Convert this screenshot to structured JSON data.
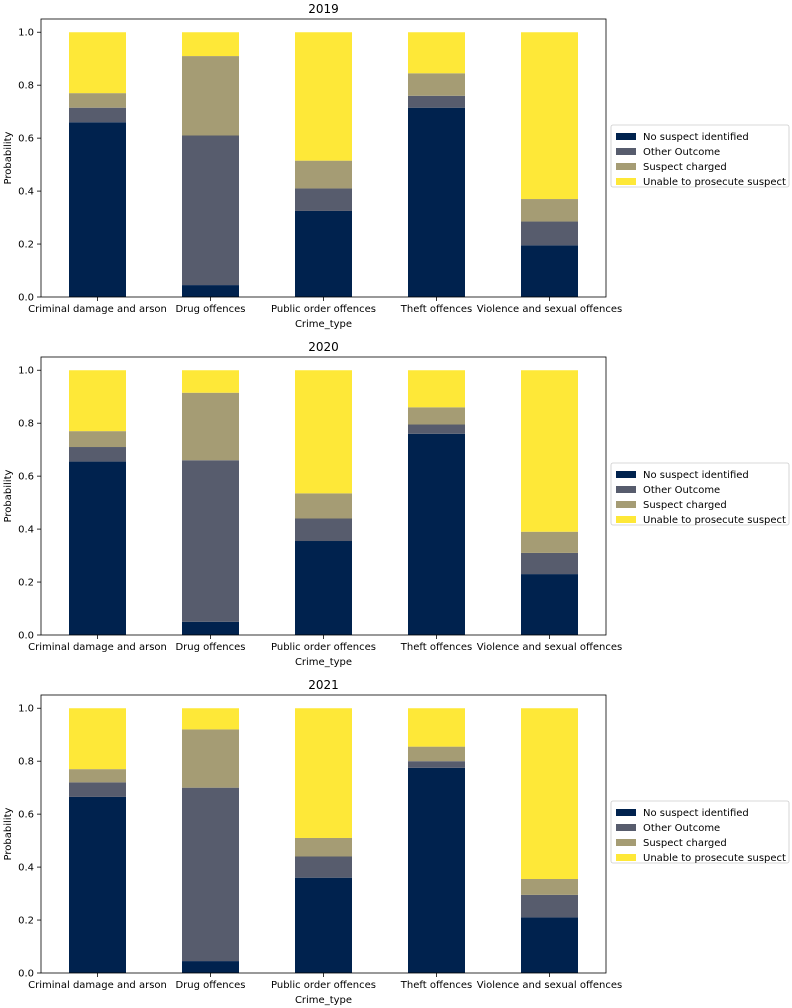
{
  "chart_data": [
    {
      "type": "bar",
      "stacked": true,
      "title": "2019",
      "xlabel": "Crime_type",
      "ylabel": "Probability",
      "ylim": [
        0,
        1.05
      ],
      "yticks": [
        "0.0",
        "0.2",
        "0.4",
        "0.6",
        "0.8",
        "1.0"
      ],
      "grid": false,
      "legend": "center-right",
      "categories": [
        "Criminal damage and arson",
        "Drug offences",
        "Public order offences",
        "Theft offences",
        "Violence and sexual offences"
      ],
      "series": [
        {
          "name": "No suspect identified",
          "color": "#00224e",
          "values": [
            0.66,
            0.045,
            0.325,
            0.715,
            0.195
          ]
        },
        {
          "name": "Other Outcome",
          "color": "#575c6d",
          "values": [
            0.055,
            0.565,
            0.085,
            0.045,
            0.09
          ]
        },
        {
          "name": "Suspect charged",
          "color": "#a59c74",
          "values": [
            0.055,
            0.3,
            0.105,
            0.085,
            0.085
          ]
        },
        {
          "name": "Unable to prosecute suspect",
          "color": "#fee838",
          "values": [
            0.23,
            0.09,
            0.485,
            0.155,
            0.63
          ]
        }
      ]
    },
    {
      "type": "bar",
      "stacked": true,
      "title": "2020",
      "xlabel": "Crime_type",
      "ylabel": "Probability",
      "ylim": [
        0,
        1.05
      ],
      "yticks": [
        "0.0",
        "0.2",
        "0.4",
        "0.6",
        "0.8",
        "1.0"
      ],
      "grid": false,
      "legend": "center-right",
      "categories": [
        "Criminal damage and arson",
        "Drug offences",
        "Public order offences",
        "Theft offences",
        "Violence and sexual offences"
      ],
      "series": [
        {
          "name": "No suspect identified",
          "color": "#00224e",
          "values": [
            0.655,
            0.05,
            0.355,
            0.76,
            0.23
          ]
        },
        {
          "name": "Other Outcome",
          "color": "#575c6d",
          "values": [
            0.055,
            0.61,
            0.085,
            0.035,
            0.08
          ]
        },
        {
          "name": "Suspect charged",
          "color": "#a59c74",
          "values": [
            0.06,
            0.255,
            0.095,
            0.065,
            0.08
          ]
        },
        {
          "name": "Unable to prosecute suspect",
          "color": "#fee838",
          "values": [
            0.23,
            0.085,
            0.465,
            0.14,
            0.61
          ]
        }
      ]
    },
    {
      "type": "bar",
      "stacked": true,
      "title": "2021",
      "xlabel": "Crime_type",
      "ylabel": "Probability",
      "ylim": [
        0,
        1.05
      ],
      "yticks": [
        "0.0",
        "0.2",
        "0.4",
        "0.6",
        "0.8",
        "1.0"
      ],
      "grid": false,
      "legend": "center-right",
      "categories": [
        "Criminal damage and arson",
        "Drug offences",
        "Public order offences",
        "Theft offences",
        "Violence and sexual offences"
      ],
      "series": [
        {
          "name": "No suspect identified",
          "color": "#00224e",
          "values": [
            0.665,
            0.045,
            0.36,
            0.775,
            0.21
          ]
        },
        {
          "name": "Other Outcome",
          "color": "#575c6d",
          "values": [
            0.055,
            0.655,
            0.08,
            0.025,
            0.085
          ]
        },
        {
          "name": "Suspect charged",
          "color": "#a59c74",
          "values": [
            0.05,
            0.22,
            0.07,
            0.055,
            0.06
          ]
        },
        {
          "name": "Unable to prosecute suspect",
          "color": "#fee838",
          "values": [
            0.23,
            0.08,
            0.49,
            0.145,
            0.645
          ]
        }
      ]
    }
  ]
}
